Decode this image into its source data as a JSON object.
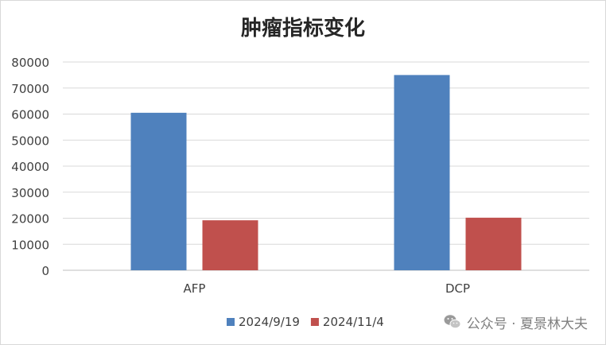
{
  "chart_data": {
    "type": "bar",
    "title": "肿瘤指标变化",
    "categories": [
      "AFP",
      "DCP"
    ],
    "series": [
      {
        "name": "2024/9/19",
        "color": "#4f81bd",
        "values": [
          60500,
          75000
        ]
      },
      {
        "name": "2024/11/4",
        "color": "#c0504d",
        "values": [
          19200,
          20200
        ]
      }
    ],
    "ylim": [
      0,
      80000
    ],
    "yticks": [
      0,
      10000,
      20000,
      30000,
      40000,
      50000,
      60000,
      70000,
      80000
    ],
    "xlabel": "",
    "ylabel": "",
    "grid": true,
    "legend_position": "bottom"
  },
  "watermark": {
    "icon": "wechat-icon",
    "text": "公众号 · 夏景林大夫"
  }
}
